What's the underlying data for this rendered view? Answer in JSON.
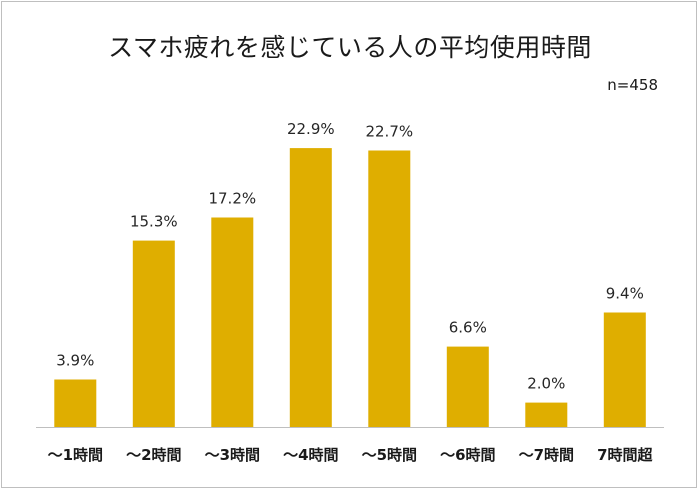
{
  "chart_data": {
    "type": "bar",
    "title": "スマホ疲れを感じている人の平均使用時間",
    "sample_note": "n=458",
    "categories": [
      "～1時間",
      "～2時間",
      "～3時間",
      "～4時間",
      "～5時間",
      "～6時間",
      "～7時間",
      "7時間超"
    ],
    "values": [
      3.9,
      15.3,
      17.2,
      22.9,
      22.7,
      6.6,
      2.0,
      9.4
    ],
    "value_labels": [
      "3.9%",
      "15.3%",
      "17.2%",
      "22.9%",
      "22.7%",
      "6.6%",
      "2.0%",
      "9.4%"
    ],
    "unit": "%",
    "ylim": [
      0,
      25
    ],
    "xlabel": "",
    "ylabel": "",
    "grid": false,
    "bar_color": "#DFAE00"
  }
}
